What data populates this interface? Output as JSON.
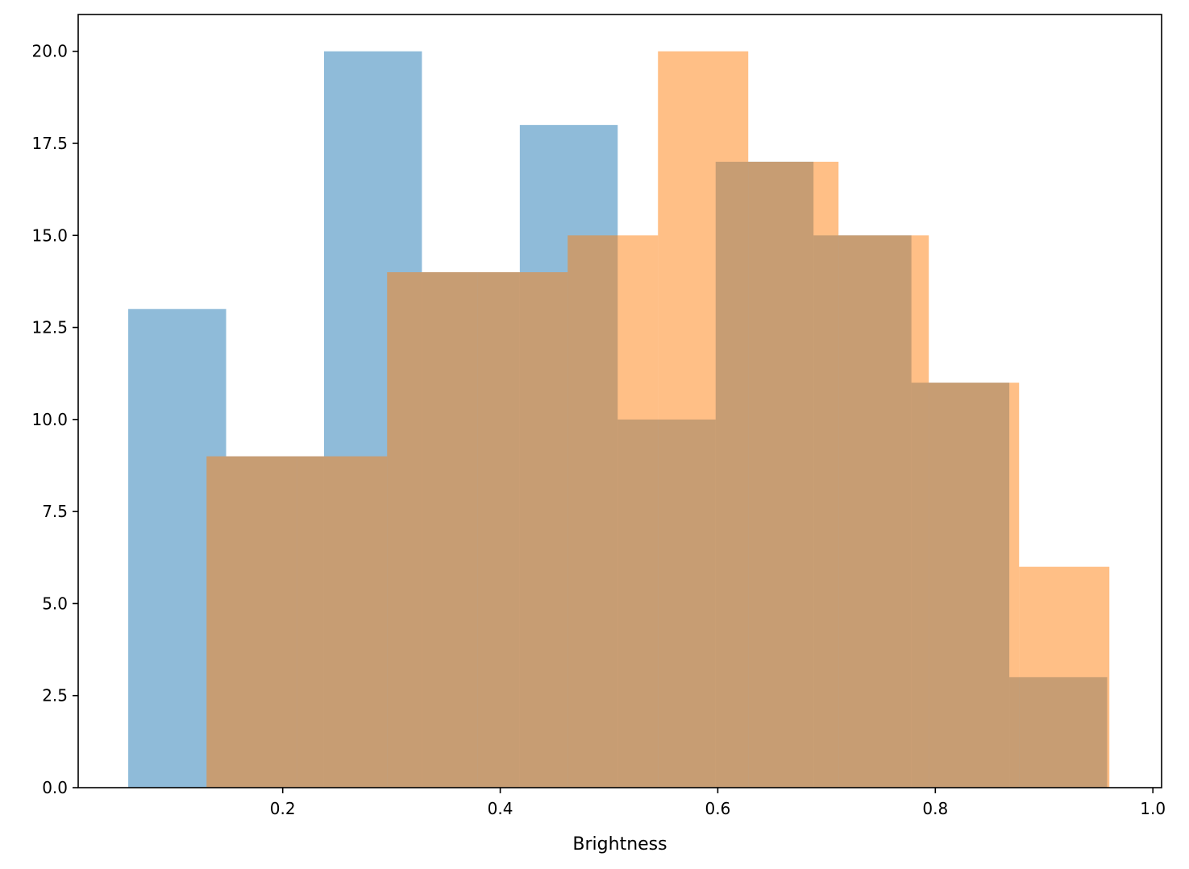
{
  "chart_data": {
    "type": "histogram",
    "title": "",
    "xlabel": "Brightness",
    "ylabel": "",
    "xlim": [
      0.012,
      1.008
    ],
    "ylim": [
      0,
      21
    ],
    "grid": false,
    "legend": null,
    "xticks": [
      0.2,
      0.4,
      0.6,
      0.8,
      1.0
    ],
    "xtick_labels": [
      "0.2",
      "0.4",
      "0.6",
      "0.8",
      "1.0"
    ],
    "yticks": [
      0,
      2.5,
      5,
      7.5,
      10,
      12.5,
      15,
      17.5,
      20
    ],
    "ytick_labels": [
      "0.0",
      "2.5",
      "5.0",
      "7.5",
      "10.0",
      "12.5",
      "15.0",
      "17.5",
      "20.0"
    ],
    "series": [
      {
        "color": "#1f77b4",
        "opacity": 0.5,
        "bin_edges": [
          0.058,
          0.148,
          0.238,
          0.328,
          0.418,
          0.508,
          0.598,
          0.688,
          0.778,
          0.868,
          0.958
        ],
        "counts": [
          13,
          9,
          20,
          14,
          18,
          10,
          17,
          15,
          11,
          3
        ]
      },
      {
        "color": "#ff7f0e",
        "opacity": 0.5,
        "bin_edges": [
          0.13,
          0.213,
          0.296,
          0.379,
          0.462,
          0.545,
          0.628,
          0.711,
          0.794,
          0.877,
          0.96
        ],
        "counts": [
          9,
          9,
          14,
          14,
          15,
          20,
          17,
          15,
          11,
          6
        ]
      }
    ]
  }
}
